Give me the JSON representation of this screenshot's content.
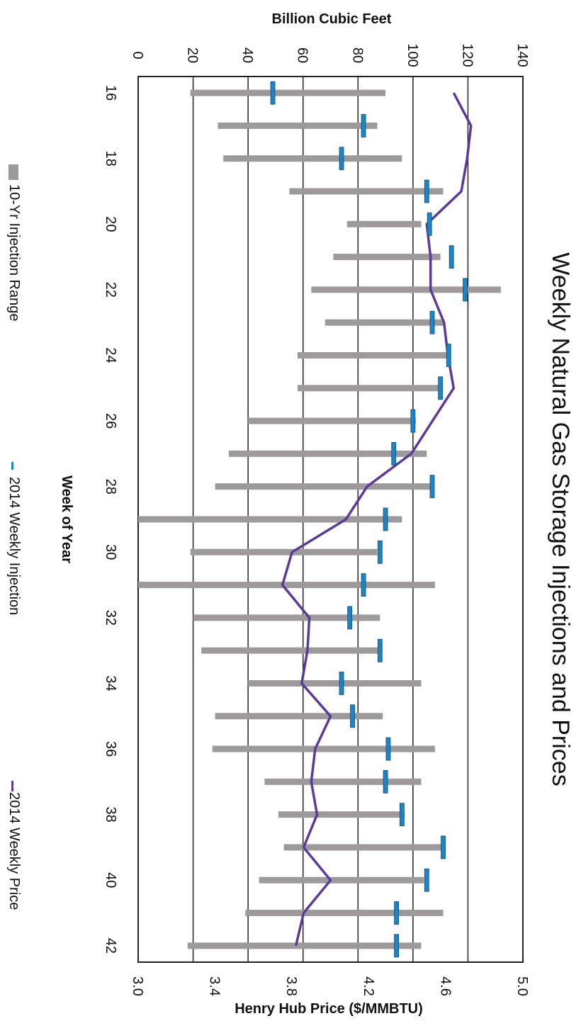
{
  "chart_data": {
    "type": "bar",
    "title": "Weekly Natural Gas Storage Injections and Prices",
    "x_axis": {
      "label": "Week of Year",
      "ticks": [
        "16",
        "18",
        "20",
        "22",
        "24",
        "26",
        "28",
        "30",
        "32",
        "34",
        "36",
        "38",
        "40",
        "42"
      ],
      "range": [
        15.5,
        42.5
      ]
    },
    "y_axis": {
      "label": "Billion Cubic Feet",
      "ticks": [
        "0",
        "20",
        "40",
        "60",
        "80",
        "100",
        "120",
        "140"
      ],
      "range": [
        0,
        140
      ]
    },
    "y2_axis": {
      "label": "Henry Hub Price ($/MMBTU)",
      "ticks": [
        "3.0",
        "3.4",
        "3.8",
        "4.2",
        "4.6",
        "5.0"
      ],
      "range": [
        3.0,
        5.0
      ]
    },
    "weeks": [
      16,
      17,
      18,
      19,
      20,
      21,
      22,
      23,
      24,
      25,
      26,
      27,
      28,
      29,
      30,
      31,
      32,
      33,
      34,
      35,
      36,
      37,
      38,
      39,
      40,
      41,
      42
    ],
    "series": [
      {
        "name": "10-Yr Injection Range",
        "kind": "range-bar",
        "color": "#9e9a9c",
        "low": [
          19,
          29,
          31,
          55,
          76,
          71,
          63,
          68,
          58,
          58,
          40,
          33,
          28,
          0,
          19,
          0,
          20,
          23,
          40,
          28,
          27,
          46,
          51,
          53,
          44,
          39,
          18
        ],
        "high": [
          90,
          87,
          96,
          111,
          103,
          110,
          132,
          111,
          113,
          110,
          101,
          105,
          107,
          96,
          87,
          108,
          88,
          88,
          103,
          89,
          108,
          103,
          97,
          111,
          104,
          111,
          103
        ]
      },
      {
        "name": "2014 Weekly Injection",
        "kind": "marker",
        "color": "#1f83c4",
        "values": [
          49,
          82,
          74,
          105,
          106,
          114,
          119,
          107,
          113,
          110,
          100,
          93,
          107,
          90,
          88,
          82,
          77,
          88,
          74,
          78,
          91,
          90,
          96,
          111,
          105,
          94,
          94
        ]
      },
      {
        "name": "2014 Weekly Price",
        "kind": "line",
        "color": "#5b3b9a",
        "values": [
          4.64,
          4.73,
          4.71,
          4.68,
          4.5,
          4.52,
          4.52,
          4.59,
          4.61,
          4.64,
          4.53,
          4.42,
          4.19,
          4.08,
          3.8,
          3.75,
          3.89,
          3.88,
          3.85,
          4.0,
          3.92,
          3.9,
          3.93,
          3.86,
          4.0,
          3.86,
          3.82
        ]
      }
    ],
    "legend_position": "bottom",
    "grid": true
  }
}
